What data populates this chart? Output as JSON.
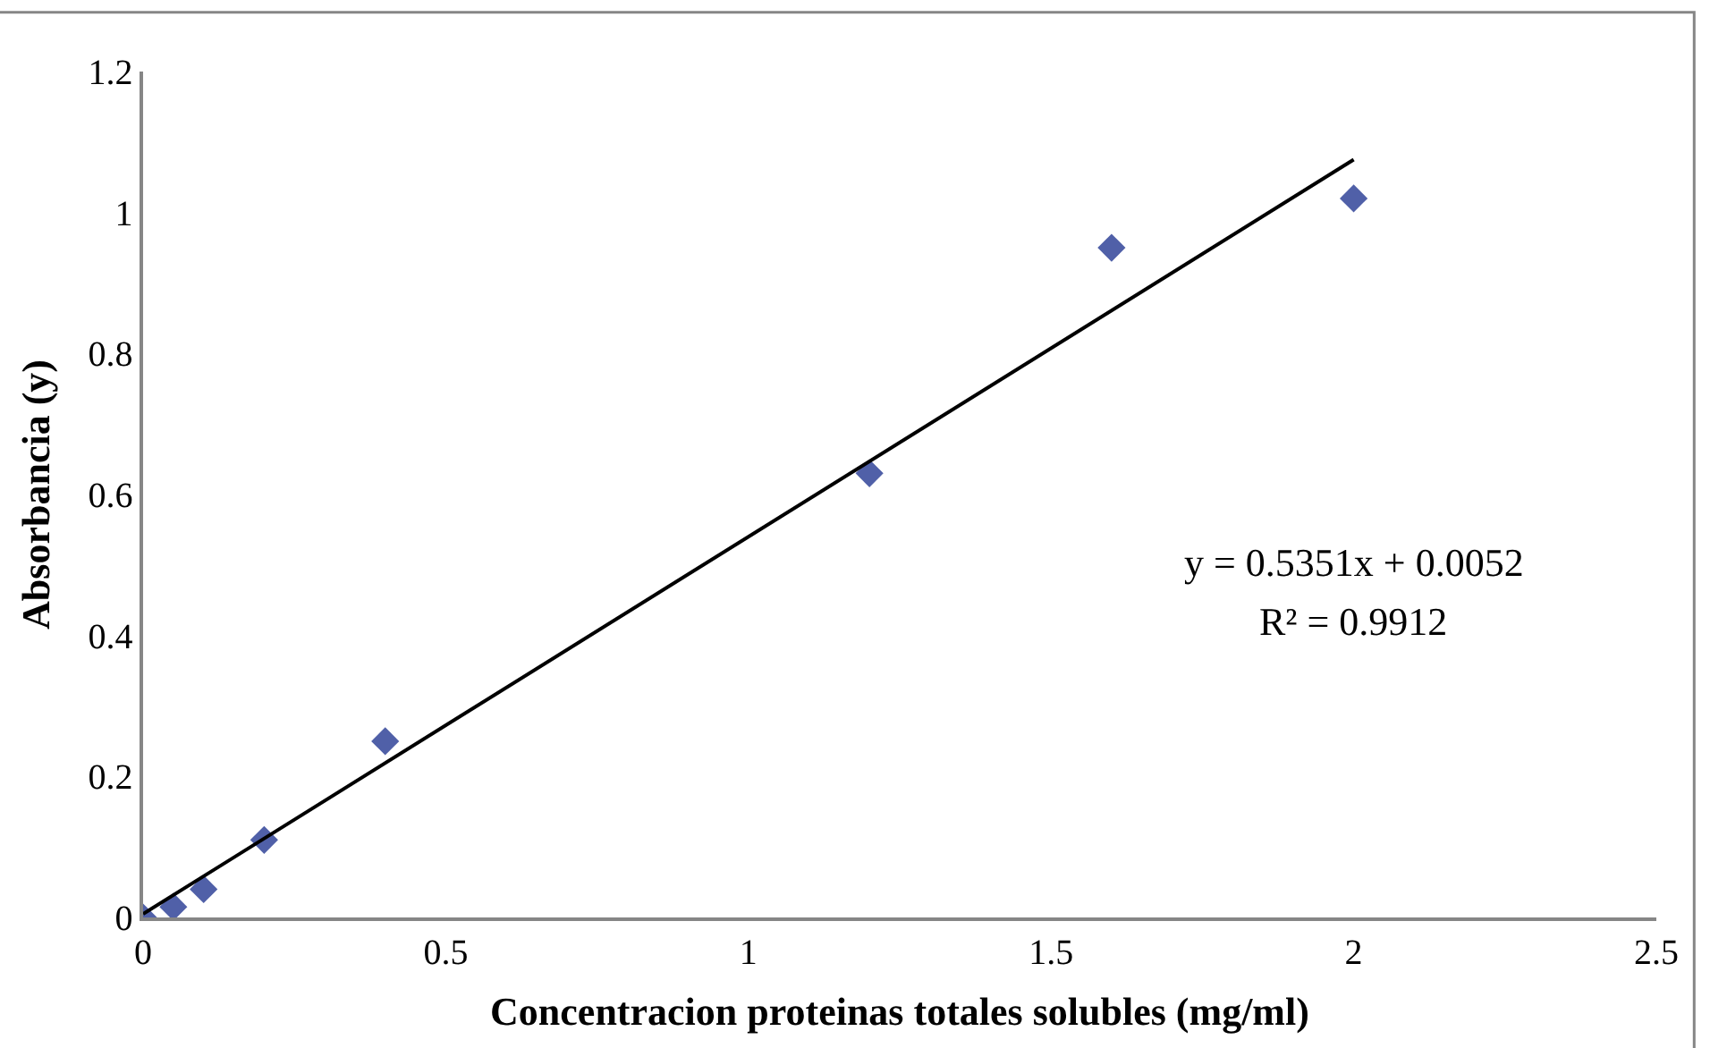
{
  "chart_data": {
    "type": "scatter",
    "xlabel": "Concentracion proteinas totales solubles (mg/ml)",
    "ylabel": "Absorbancia (y)",
    "xlim": [
      0,
      2.5
    ],
    "xticks": [
      0,
      0.5,
      1,
      1.5,
      2,
      2.5
    ],
    "ylim": [
      0,
      1.2
    ],
    "yticks": [
      0,
      0.2,
      0.4,
      0.6,
      0.8,
      1,
      1.2
    ],
    "grid": false,
    "marker": "diamond",
    "series": [
      {
        "color": "#5060a8",
        "x": [
          0,
          0.05,
          0.1,
          0.2,
          0.4,
          1.2,
          1.6,
          2.0
        ],
        "values": [
          0,
          0.015,
          0.04,
          0.11,
          0.25,
          0.63,
          0.95,
          1.02
        ]
      },
      {
        "type": "line",
        "color": "#000000",
        "x": [
          0,
          2.0
        ],
        "values": [
          0.005,
          1.075
        ],
        "line_style": "solid",
        "marker": "none"
      }
    ],
    "annotations": [
      "y = 0.5351x + 0.0052",
      "R² = 0.9912"
    ]
  }
}
